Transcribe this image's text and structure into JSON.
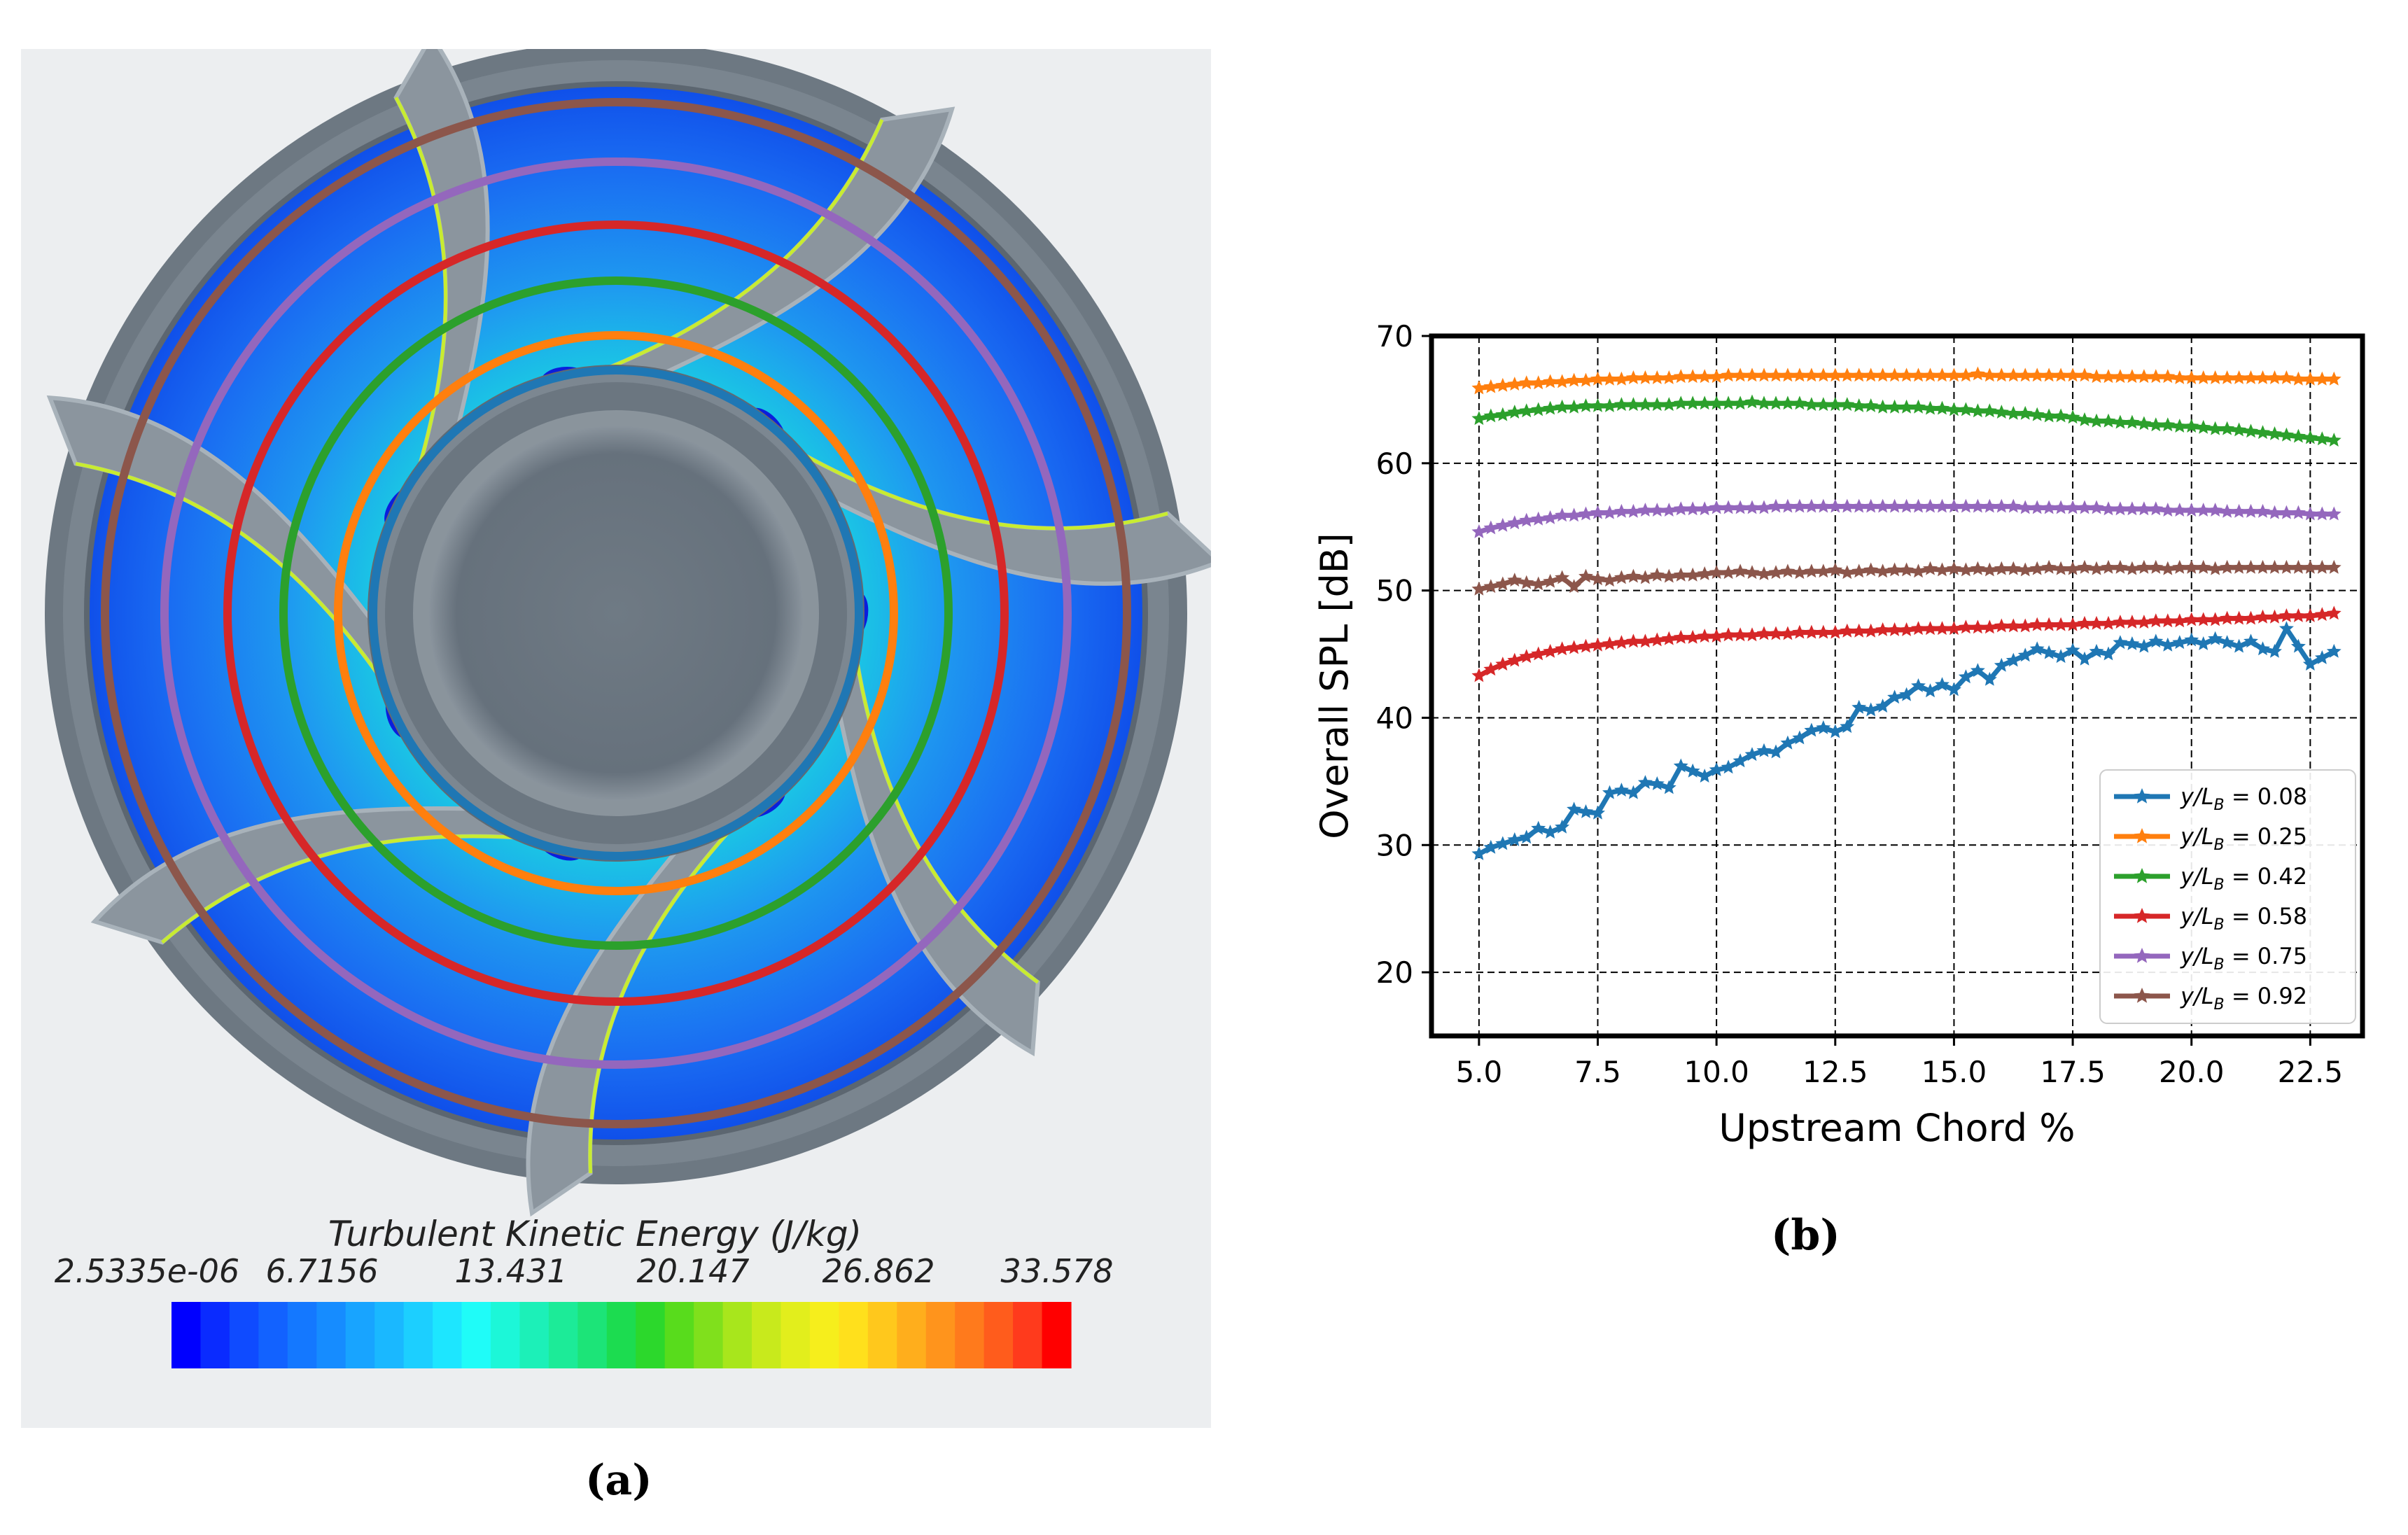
{
  "panel_a": {
    "caption": "(a)",
    "colorbar": {
      "title": "Turbulent Kinetic Energy (J/kg)",
      "ticks": [
        "2.5335e-06",
        "6.7156",
        "13.431",
        "20.147",
        "26.862",
        "33.578"
      ],
      "colors": [
        "#0000ff",
        "#0a2bff",
        "#0f4bff",
        "#1262ff",
        "#1478ff",
        "#168cff",
        "#18a4ff",
        "#1ab8ff",
        "#1ccfff",
        "#1de6ff",
        "#1ffcf8",
        "#1cf7d8",
        "#1cf0b8",
        "#1ceb98",
        "#1ce478",
        "#1cdc50",
        "#2cd82c",
        "#58dc1c",
        "#80e01c",
        "#a8e61c",
        "#c8ea1c",
        "#e2ee1c",
        "#f6ee1c",
        "#ffe01c",
        "#ffc81c",
        "#ffae1c",
        "#ff941c",
        "#ff7a1c",
        "#ff5c1c",
        "#ff3a1c",
        "#ff0000"
      ]
    },
    "ring_colors": [
      "#1f77b4",
      "#ff7f0e",
      "#2ca02c",
      "#d62728",
      "#9467bd",
      "#8c564b"
    ]
  },
  "panel_b": {
    "caption": "(b)"
  },
  "chart_data": {
    "type": "line",
    "title": "",
    "xlabel": "Upstream Chord %",
    "ylabel": "Overall SPL [dB]",
    "xlim": [
      4.0,
      23.6
    ],
    "ylim": [
      15,
      70
    ],
    "xticks": [
      5.0,
      7.5,
      10.0,
      12.5,
      15.0,
      17.5,
      20.0,
      22.5
    ],
    "xtick_labels": [
      "5.0",
      "7.5",
      "10.0",
      "12.5",
      "15.0",
      "17.5",
      "20.0",
      "22.5"
    ],
    "yticks": [
      20,
      30,
      40,
      50,
      60,
      70
    ],
    "ytick_labels": [
      "20",
      "30",
      "40",
      "50",
      "60",
      "70"
    ],
    "grid": true,
    "legend_position": "lower-right",
    "x": [
      5.0,
      5.25,
      5.5,
      5.75,
      6.0,
      6.25,
      6.5,
      6.75,
      7.0,
      7.25,
      7.5,
      7.75,
      8.0,
      8.25,
      8.5,
      8.75,
      9.0,
      9.25,
      9.5,
      9.75,
      10.0,
      10.25,
      10.5,
      10.75,
      11.0,
      11.25,
      11.5,
      11.75,
      12.0,
      12.25,
      12.5,
      12.75,
      13.0,
      13.25,
      13.5,
      13.75,
      14.0,
      14.25,
      14.5,
      14.75,
      15.0,
      15.25,
      15.5,
      15.75,
      16.0,
      16.25,
      16.5,
      16.75,
      17.0,
      17.25,
      17.5,
      17.75,
      18.0,
      18.25,
      18.5,
      18.75,
      19.0,
      19.25,
      19.5,
      19.75,
      20.0,
      20.25,
      20.5,
      20.75,
      21.0,
      21.25,
      21.5,
      21.75,
      22.0,
      22.25,
      22.5,
      22.75,
      23.0
    ],
    "series": [
      {
        "name": "y/L_B = 0.08",
        "legend_value": "0.08",
        "color": "#1f77b4",
        "values": [
          29.3,
          29.8,
          30.1,
          30.4,
          30.6,
          31.3,
          31.0,
          31.4,
          32.8,
          32.6,
          32.5,
          34.1,
          34.3,
          34.1,
          34.9,
          34.8,
          34.5,
          36.2,
          35.8,
          35.4,
          35.9,
          36.1,
          36.6,
          37.1,
          37.4,
          37.3,
          38.0,
          38.4,
          39.0,
          39.2,
          38.9,
          39.3,
          40.8,
          40.6,
          40.9,
          41.6,
          41.8,
          42.5,
          42.1,
          42.6,
          42.2,
          43.2,
          43.7,
          43.0,
          44.1,
          44.5,
          44.9,
          45.4,
          45.1,
          44.8,
          45.3,
          44.6,
          45.2,
          45.0,
          45.9,
          45.8,
          45.6,
          46.0,
          45.7,
          45.9,
          46.1,
          45.8,
          46.2,
          45.9,
          45.6,
          46.0,
          45.4,
          45.2,
          47.0,
          45.6,
          44.2,
          44.7,
          45.2
        ]
      },
      {
        "name": "y/L_B = 0.25",
        "legend_value": "0.25",
        "color": "#ff7f0e",
        "values": [
          65.9,
          66.0,
          66.1,
          66.2,
          66.3,
          66.3,
          66.4,
          66.4,
          66.5,
          66.5,
          66.6,
          66.6,
          66.6,
          66.7,
          66.7,
          66.7,
          66.7,
          66.8,
          66.8,
          66.8,
          66.8,
          66.9,
          66.9,
          66.9,
          66.9,
          66.9,
          66.9,
          66.9,
          66.9,
          66.9,
          66.9,
          66.9,
          66.9,
          66.9,
          66.9,
          66.9,
          66.9,
          66.9,
          66.9,
          66.9,
          66.9,
          66.9,
          67.0,
          66.9,
          66.9,
          66.9,
          66.9,
          66.9,
          66.9,
          66.9,
          66.9,
          66.9,
          66.8,
          66.8,
          66.8,
          66.8,
          66.8,
          66.8,
          66.8,
          66.7,
          66.7,
          66.7,
          66.7,
          66.7,
          66.7,
          66.7,
          66.7,
          66.7,
          66.7,
          66.6,
          66.6,
          66.6,
          66.6
        ]
      },
      {
        "name": "y/L_B = 0.42",
        "legend_value": "0.42",
        "color": "#2ca02c",
        "values": [
          63.5,
          63.7,
          63.8,
          64.0,
          64.1,
          64.2,
          64.3,
          64.4,
          64.4,
          64.5,
          64.5,
          64.5,
          64.6,
          64.6,
          64.6,
          64.6,
          64.6,
          64.7,
          64.7,
          64.7,
          64.7,
          64.7,
          64.7,
          64.8,
          64.7,
          64.7,
          64.7,
          64.7,
          64.6,
          64.6,
          64.6,
          64.6,
          64.5,
          64.5,
          64.4,
          64.4,
          64.4,
          64.4,
          64.3,
          64.3,
          64.2,
          64.2,
          64.1,
          64.1,
          64.0,
          63.9,
          63.9,
          63.8,
          63.7,
          63.7,
          63.6,
          63.4,
          63.3,
          63.3,
          63.2,
          63.2,
          63.1,
          63.0,
          63.0,
          62.9,
          62.9,
          62.8,
          62.7,
          62.7,
          62.6,
          62.5,
          62.4,
          62.3,
          62.2,
          62.1,
          62.0,
          61.9,
          61.8
        ]
      },
      {
        "name": "y/L_B = 0.58",
        "legend_value": "0.58",
        "color": "#d62728",
        "values": [
          43.3,
          43.8,
          44.2,
          44.5,
          44.8,
          45.0,
          45.2,
          45.4,
          45.5,
          45.6,
          45.7,
          45.8,
          45.9,
          46.0,
          46.0,
          46.1,
          46.2,
          46.3,
          46.3,
          46.4,
          46.4,
          46.5,
          46.5,
          46.5,
          46.6,
          46.6,
          46.6,
          46.7,
          46.7,
          46.7,
          46.7,
          46.8,
          46.8,
          46.8,
          46.9,
          46.9,
          46.9,
          47.0,
          47.0,
          47.0,
          47.0,
          47.1,
          47.1,
          47.1,
          47.2,
          47.2,
          47.2,
          47.3,
          47.3,
          47.3,
          47.3,
          47.4,
          47.4,
          47.4,
          47.5,
          47.5,
          47.5,
          47.6,
          47.6,
          47.6,
          47.7,
          47.7,
          47.7,
          47.8,
          47.8,
          47.8,
          47.9,
          47.9,
          48.0,
          48.0,
          48.0,
          48.1,
          48.2
        ]
      },
      {
        "name": "y/L_B = 0.75",
        "legend_value": "0.75",
        "color": "#9467bd",
        "values": [
          54.6,
          54.9,
          55.1,
          55.3,
          55.5,
          55.6,
          55.7,
          55.9,
          55.9,
          56.0,
          56.1,
          56.1,
          56.2,
          56.2,
          56.3,
          56.3,
          56.3,
          56.4,
          56.4,
          56.4,
          56.5,
          56.5,
          56.5,
          56.5,
          56.5,
          56.6,
          56.6,
          56.6,
          56.6,
          56.6,
          56.6,
          56.6,
          56.6,
          56.6,
          56.6,
          56.6,
          56.6,
          56.6,
          56.6,
          56.6,
          56.6,
          56.6,
          56.6,
          56.6,
          56.6,
          56.6,
          56.5,
          56.5,
          56.5,
          56.5,
          56.5,
          56.5,
          56.5,
          56.4,
          56.4,
          56.4,
          56.4,
          56.4,
          56.3,
          56.3,
          56.3,
          56.3,
          56.3,
          56.2,
          56.2,
          56.2,
          56.2,
          56.1,
          56.1,
          56.1,
          56.0,
          56.0,
          56.0
        ]
      },
      {
        "name": "y/L_B = 0.92",
        "legend_value": "0.92",
        "color": "#8c564b",
        "values": [
          50.1,
          50.3,
          50.5,
          50.8,
          50.6,
          50.5,
          50.7,
          51.0,
          50.3,
          51.1,
          50.9,
          50.8,
          51.0,
          51.1,
          51.0,
          51.2,
          51.1,
          51.2,
          51.2,
          51.3,
          51.4,
          51.4,
          51.5,
          51.4,
          51.3,
          51.4,
          51.5,
          51.4,
          51.5,
          51.5,
          51.6,
          51.4,
          51.5,
          51.6,
          51.5,
          51.6,
          51.6,
          51.5,
          51.7,
          51.6,
          51.7,
          51.6,
          51.7,
          51.6,
          51.7,
          51.7,
          51.6,
          51.7,
          51.8,
          51.7,
          51.7,
          51.8,
          51.7,
          51.8,
          51.8,
          51.7,
          51.8,
          51.8,
          51.7,
          51.8,
          51.8,
          51.8,
          51.7,
          51.8,
          51.8,
          51.8,
          51.8,
          51.8,
          51.8,
          51.8,
          51.8,
          51.8,
          51.8
        ]
      }
    ]
  }
}
